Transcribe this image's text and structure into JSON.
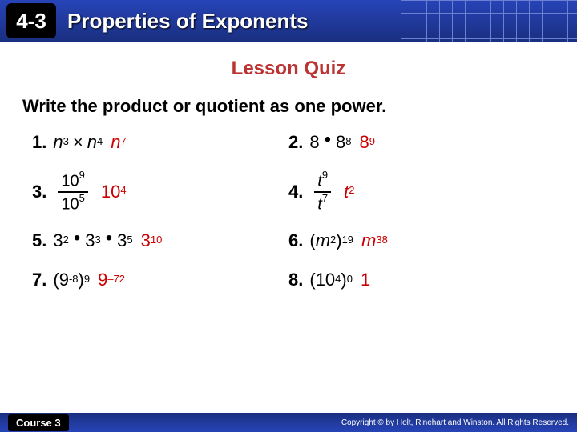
{
  "header": {
    "badge": "4-3",
    "title": "Properties of Exponents"
  },
  "subtitle": "Lesson Quiz",
  "instruction": "Write the product or quotient as one power.",
  "problems": {
    "p1": {
      "num": "1.",
      "base": "n",
      "e1": "3",
      "op": "×",
      "e2": "4",
      "ans_base": "n",
      "ans_e": "7"
    },
    "p2": {
      "num": "2.",
      "b1": "8",
      "dot": "•",
      "b2": "8",
      "e2": "8",
      "ans_base": "8",
      "ans_e": "9"
    },
    "p3": {
      "num": "3.",
      "top_b": "10",
      "top_e": "9",
      "bot_b": "10",
      "bot_e": "5",
      "ans_base": "10",
      "ans_e": "4"
    },
    "p4": {
      "num": "4.",
      "top_b": "t",
      "top_e": "9",
      "bot_b": "t",
      "bot_e": "7",
      "ans_base": "t",
      "ans_e": "2"
    },
    "p5": {
      "num": "5.",
      "b": "3",
      "e1": "2",
      "e2": "3",
      "e3": "5",
      "dot": "•",
      "ans_base": "3",
      "ans_e": "10"
    },
    "p6": {
      "num": "6.",
      "open": "(",
      "base": "m",
      "inner_e": "2",
      "close": ")",
      "outer_e": "19",
      "ans_base": "m",
      "ans_e": "38"
    },
    "p7": {
      "num": "7.",
      "open": "(",
      "base": "9",
      "inner_e": "-8",
      "close": ")",
      "outer_e": "9",
      "ans_base": "9",
      "ans_e": "–72"
    },
    "p8": {
      "num": "8.",
      "open": "(",
      "base": "10",
      "inner_e": "4",
      "close": ")",
      "outer_e": "0",
      "ans": "1"
    }
  },
  "footer": {
    "course": "Course 3",
    "copyright": "Copyright © by Holt, Rinehart and Winston. All Rights Reserved."
  }
}
